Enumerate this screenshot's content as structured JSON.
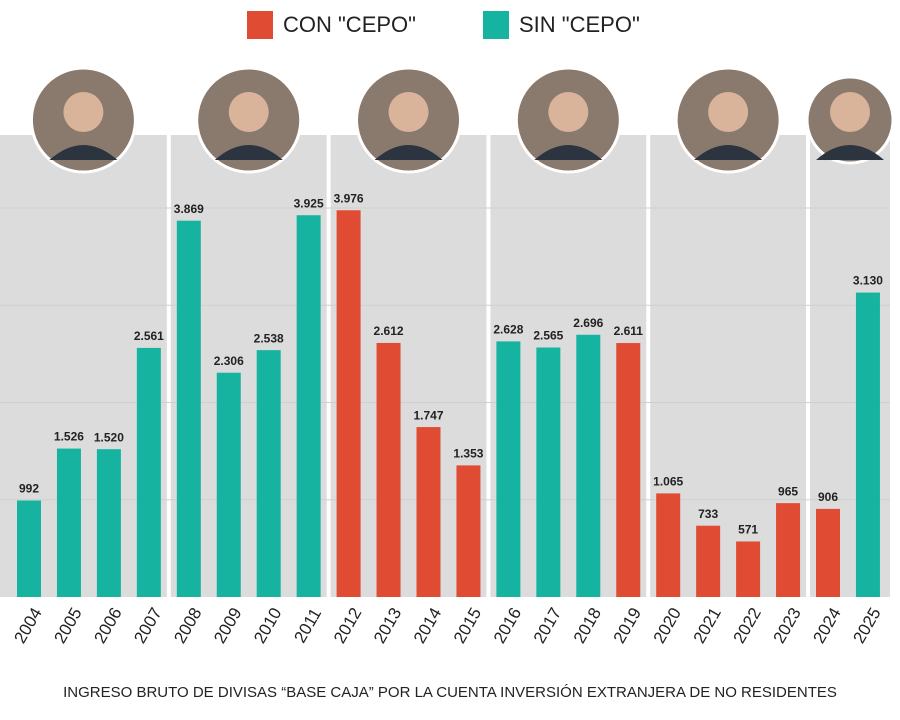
{
  "chart_data": {
    "type": "bar",
    "categories": [
      "2004",
      "2005",
      "2006",
      "2007",
      "2008",
      "2009",
      "2010",
      "2011",
      "2012",
      "2013",
      "2014",
      "2015",
      "2016",
      "2017",
      "2018",
      "2019",
      "2020",
      "2021",
      "2022",
      "2023",
      "2024",
      "2025"
    ],
    "series": [
      {
        "name": "CON \"CEPO\"",
        "color": "#e04b34",
        "values": [
          null,
          null,
          null,
          null,
          null,
          null,
          null,
          null,
          3976,
          2612,
          1747,
          1353,
          null,
          null,
          null,
          2611,
          1065,
          733,
          571,
          965,
          906,
          null
        ],
        "value_labels": [
          null,
          null,
          null,
          null,
          null,
          null,
          null,
          null,
          "3.976",
          "2.612",
          "1.747",
          "1.353",
          null,
          null,
          null,
          "2.611",
          "1.065",
          "733",
          "571",
          "965",
          "906",
          null
        ]
      },
      {
        "name": "SIN \"CEPO\"",
        "color": "#16b3a0",
        "values": [
          992,
          1526,
          1520,
          2561,
          3869,
          2306,
          2538,
          3925,
          null,
          null,
          null,
          null,
          2628,
          2565,
          2696,
          null,
          null,
          null,
          null,
          null,
          null,
          3130
        ],
        "value_labels": [
          "992",
          "1.526",
          "1.520",
          "2.561",
          "3.869",
          "2.306",
          "2.538",
          "3.925",
          null,
          null,
          null,
          null,
          "2.628",
          "2.565",
          "2.696",
          null,
          null,
          null,
          null,
          null,
          null,
          "3.130"
        ]
      }
    ],
    "ylim": [
      0,
      4750
    ],
    "caption": "INGRESO BRUTO DE DIVISAS “BASE CAJA” POR LA CUENTA INVERSIÓN EXTRANJERA DE NO RESIDENTES"
  }
}
